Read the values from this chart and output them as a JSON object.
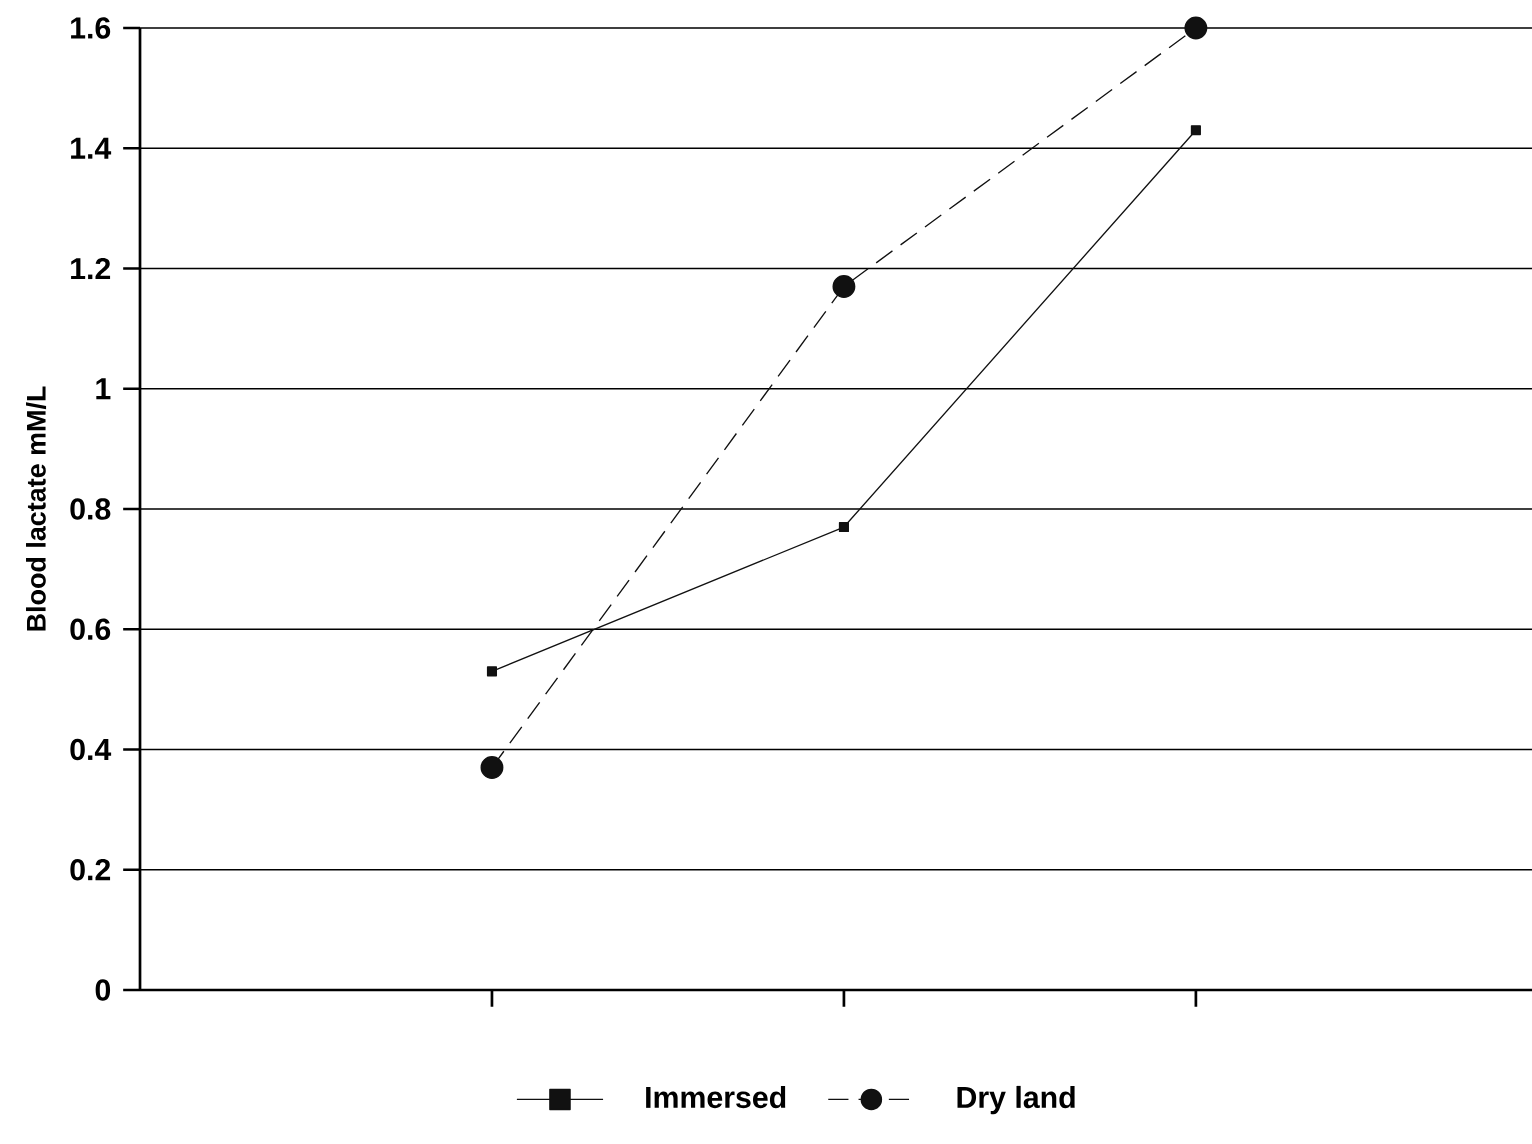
{
  "chart_data": {
    "type": "line",
    "ylabel": "Blood lactate mM/L",
    "categories": [
      null,
      null,
      null
    ],
    "series": [
      {
        "name": "Immersed",
        "color": "#111111",
        "values": [
          0.53,
          0.77,
          1.43
        ],
        "marker": "square",
        "line_style": "solid"
      },
      {
        "name": "Dry land",
        "color": "#111111",
        "values": [
          0.37,
          1.17,
          1.6
        ],
        "marker": "circle",
        "line_style": "dashed"
      }
    ],
    "ylim": [
      0,
      1.6
    ],
    "yticks": [
      0,
      0.2,
      0.4,
      0.6,
      0.8,
      1,
      1.2,
      1.4,
      1.6
    ],
    "grid": "y",
    "legend": "bottom"
  }
}
